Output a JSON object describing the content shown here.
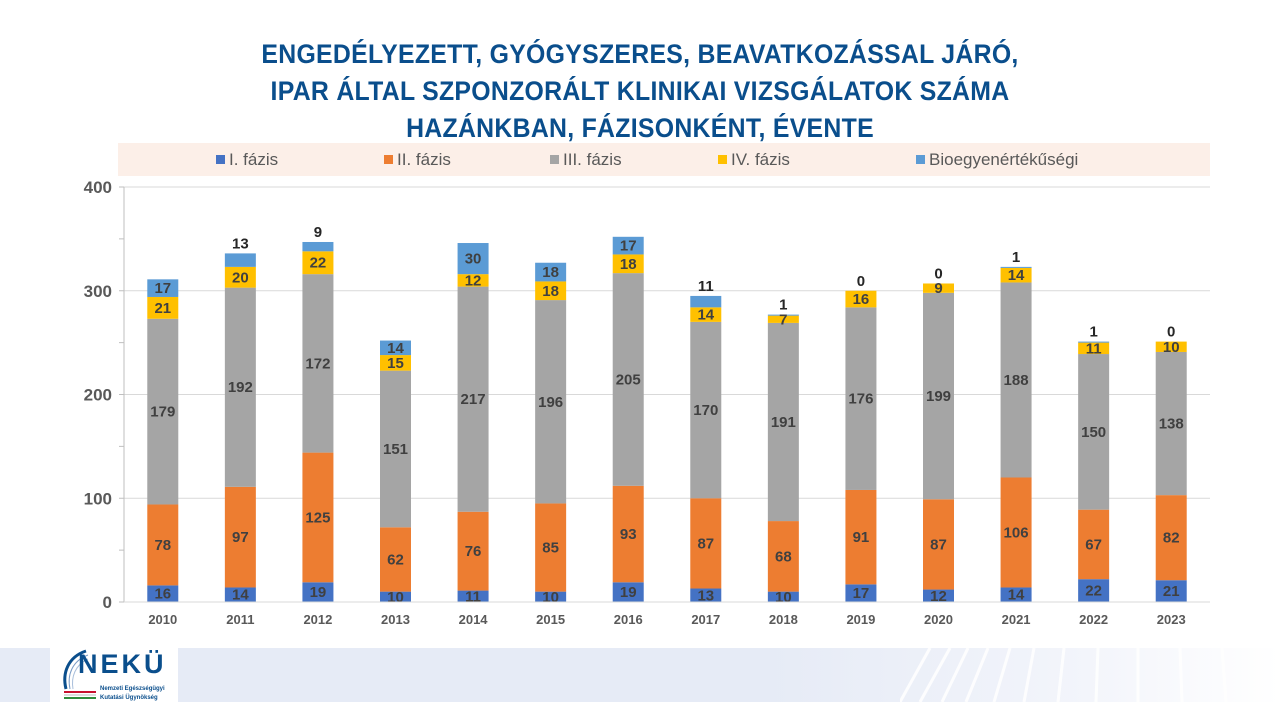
{
  "title_lines": [
    "ENGEDÉLYEZETT, GYÓGYSZERES, BEAVATKOZÁSSAL JÁRÓ,",
    "IPAR ÁLTAL SZPONZORÁLT KLINIKAI VIZSGÁLATOK SZÁMA",
    "HAZÁNKBAN, FÁZISONKÉNT, ÉVENTE"
  ],
  "logo": {
    "name": "NEKÜ",
    "subtitle_line1": "Nemzeti Egészségügyi",
    "subtitle_line2": "Kutatási Ügynökség"
  },
  "chart_data": {
    "type": "bar",
    "stacked": true,
    "title": "ENGEDÉLYEZETT, GYÓGYSZERES, BEAVATKOZÁSSAL JÁRÓ, IPAR ÁLTAL SZPONZORÁLT KLINIKAI VIZSGÁLATOK SZÁMA HAZÁNKBAN, FÁZISONKÉNT, ÉVENTE",
    "xlabel": "",
    "ylabel": "",
    "ylim": [
      0,
      400
    ],
    "yticks": [
      0,
      100,
      200,
      300,
      400
    ],
    "grid": true,
    "legend_position": "top",
    "categories": [
      "2010",
      "2011",
      "2012",
      "2013",
      "2014",
      "2015",
      "2016",
      "2017",
      "2018",
      "2019",
      "2020",
      "2021",
      "2022",
      "2023"
    ],
    "series": [
      {
        "name": "I. fázis",
        "color": "#4472c4",
        "values": [
          16,
          14,
          19,
          10,
          11,
          10,
          19,
          13,
          10,
          17,
          12,
          14,
          22,
          21
        ]
      },
      {
        "name": "II. fázis",
        "color": "#ed7d31",
        "values": [
          78,
          97,
          125,
          62,
          76,
          85,
          93,
          87,
          68,
          91,
          87,
          106,
          67,
          82
        ]
      },
      {
        "name": "III. fázis",
        "color": "#a5a5a5",
        "values": [
          179,
          192,
          172,
          151,
          217,
          196,
          205,
          170,
          191,
          176,
          199,
          188,
          150,
          138
        ]
      },
      {
        "name": "IV. fázis",
        "color": "#ffc000",
        "values": [
          21,
          20,
          22,
          15,
          12,
          18,
          18,
          14,
          7,
          16,
          9,
          14,
          11,
          10
        ]
      },
      {
        "name": "Bioegyenértékűségi",
        "color": "#5b9bd5",
        "values": [
          17,
          13,
          9,
          14,
          30,
          18,
          17,
          11,
          1,
          0,
          0,
          1,
          1,
          0
        ]
      }
    ]
  }
}
